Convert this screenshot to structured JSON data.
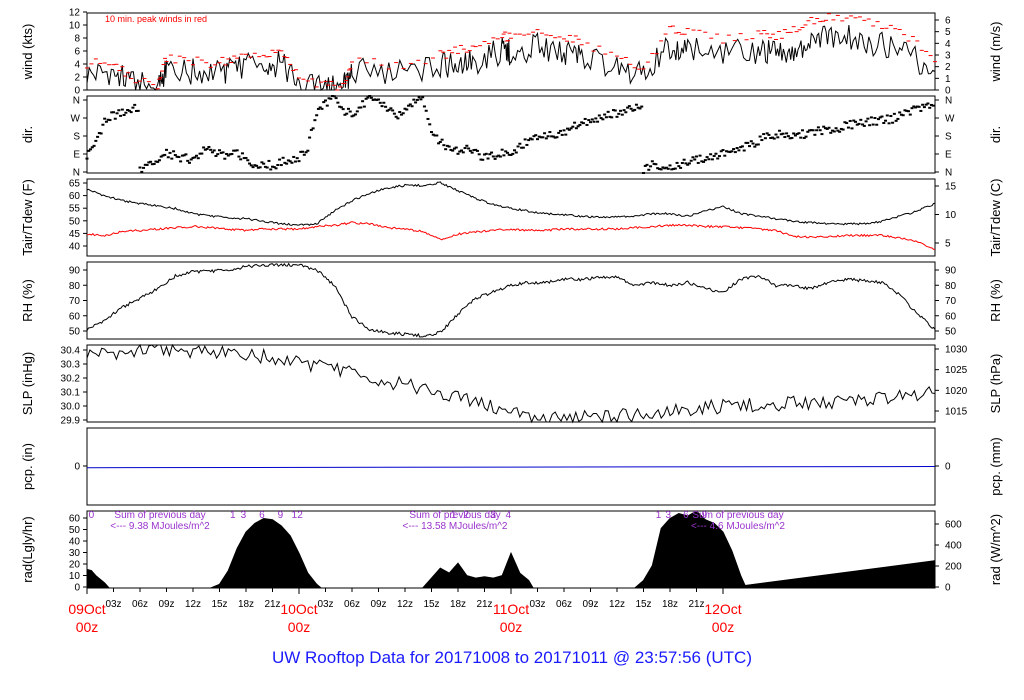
{
  "title": "UW Rooftop Data for 20171008  to  20171011 @ 23:57:56  (UTC)",
  "colors": {
    "primary": "#000000",
    "peak": "#ff0000",
    "dew": "#ff0000",
    "precip": "#0000cc",
    "radiation_note": "#9933cc",
    "date_label": "#ff0000",
    "title": "#1a1aff"
  },
  "chart_data": [
    {
      "id": "wind",
      "type": "line",
      "ylabel_left": "wind (kts)",
      "ylabel_right": "wind (m/s)",
      "annotation": "10 min. peak winds in red",
      "yticks_left": [
        "0",
        "2",
        "4",
        "6",
        "8",
        "10",
        "12"
      ],
      "yticks_right": [
        "0",
        "1",
        "2",
        "3",
        "4",
        "5",
        "6"
      ],
      "ylim": [
        0,
        12.5
      ],
      "x_hours": [
        0,
        3,
        5,
        8,
        9,
        12,
        15,
        17,
        20,
        22,
        24,
        27,
        29,
        30,
        35,
        40,
        42,
        44,
        47,
        48,
        51,
        54,
        56,
        60,
        63,
        66,
        68,
        72,
        76,
        78,
        80,
        82,
        84,
        87,
        90,
        93,
        96
      ],
      "series": [
        {
          "name": "wind",
          "values": [
            2.5,
            3.0,
            1.0,
            0.4,
            3.6,
            3.0,
            3.0,
            3.4,
            4.4,
            4.2,
            1.0,
            0.2,
            0.3,
            3.2,
            2.6,
            3.8,
            4.4,
            4.6,
            6.4,
            6.0,
            7.0,
            6.2,
            5.8,
            3.5,
            2.2,
            7.2,
            6.8,
            5.8,
            6.5,
            6.0,
            6.8,
            8.0,
            9.0,
            8.2,
            7.4,
            6.0,
            3.0
          ]
        },
        {
          "name": "10 min. peak winds",
          "values": [
            4.0,
            4.8,
            1.6,
            1.0,
            5.2,
            4.6,
            4.4,
            5.0,
            6.2,
            6.0,
            2.0,
            0.6,
            0.8,
            4.8,
            4.0,
            5.6,
            6.4,
            6.8,
            8.8,
            8.4,
            9.6,
            8.8,
            8.0,
            5.2,
            3.4,
            9.8,
            9.4,
            8.2,
            9.2,
            8.6,
            9.6,
            11.2,
            12.2,
            11.4,
            10.4,
            8.6,
            4.6
          ]
        }
      ]
    },
    {
      "id": "dir",
      "type": "scatter",
      "ylabel_left": "dir.",
      "ylabel_right": "dir.",
      "yticks_left": [
        "N",
        "E",
        "S",
        "W",
        "N"
      ],
      "yticks_right": [
        "N",
        "E",
        "S",
        "W",
        "N"
      ],
      "ylim": [
        0,
        360
      ],
      "x_hours": [
        0,
        1,
        2,
        3,
        4,
        5,
        6,
        7,
        8,
        9,
        10,
        11,
        12,
        13,
        14,
        15,
        16,
        17,
        18,
        19,
        20,
        21,
        22,
        23,
        24,
        25,
        26,
        27,
        28,
        29,
        30,
        31,
        32,
        33,
        34,
        35,
        36,
        37,
        38,
        39,
        40,
        41,
        42,
        43,
        44,
        45,
        46,
        47,
        48,
        49,
        50,
        51,
        52,
        53,
        54,
        55,
        56,
        57,
        58,
        59,
        60,
        61,
        62,
        63,
        64,
        65,
        66,
        67,
        68,
        69,
        70,
        71,
        72,
        73,
        74,
        75,
        76,
        77,
        78,
        79,
        80,
        81,
        82,
        83,
        84,
        85,
        86,
        87,
        88,
        89,
        90,
        91,
        92,
        93,
        94,
        95,
        96
      ],
      "series": [
        {
          "name": "direction",
          "values": [
            80,
            150,
            240,
            270,
            280,
            300,
            20,
            30,
            60,
            90,
            80,
            70,
            60,
            100,
            110,
            90,
            80,
            90,
            60,
            40,
            50,
            30,
            50,
            60,
            70,
            120,
            280,
            330,
            350,
            290,
            280,
            310,
            350,
            340,
            300,
            260,
            300,
            340,
            350,
            200,
            140,
            120,
            100,
            110,
            90,
            70,
            80,
            90,
            100,
            120,
            150,
            170,
            180,
            160,
            190,
            220,
            230,
            240,
            250,
            270,
            280,
            290,
            300,
            10,
            40,
            30,
            30,
            40,
            50,
            60,
            70,
            80,
            90,
            100,
            110,
            130,
            150,
            170,
            180,
            180,
            170,
            180,
            190,
            200,
            200,
            210,
            220,
            230,
            240,
            240,
            250,
            250,
            270,
            290,
            300,
            310,
            320
          ]
        }
      ]
    },
    {
      "id": "temp",
      "type": "line",
      "ylabel_left": "Tair/Tdew (F)",
      "ylabel_right": "Tair/Tdew (C)",
      "yticks_left": [
        "40",
        "45",
        "50",
        "55",
        "60",
        "65"
      ],
      "yticks_right": [
        "5",
        "10",
        "15"
      ],
      "ylim": [
        35.5,
        65.5
      ],
      "x_hours": [
        0,
        2,
        4,
        6,
        8,
        10,
        12,
        14,
        16,
        18,
        20,
        22,
        24,
        26,
        28,
        30,
        32,
        34,
        36,
        38,
        40,
        42,
        44,
        46,
        48,
        50,
        52,
        54,
        56,
        58,
        60,
        62,
        64,
        66,
        68,
        70,
        72,
        74,
        76,
        78,
        80,
        82,
        84,
        86,
        88,
        90,
        92,
        94,
        96
      ],
      "series": [
        {
          "name": "Tair",
          "values": [
            61.5,
            59,
            57,
            56,
            55,
            54,
            52,
            51,
            50.5,
            50,
            49,
            48,
            47.5,
            48,
            53,
            57,
            60,
            62,
            63,
            63,
            64,
            61,
            58,
            55.5,
            54,
            53,
            52,
            51.5,
            51,
            50.5,
            51,
            51,
            52,
            52,
            51,
            53,
            55,
            52,
            51,
            50,
            49,
            48.5,
            48,
            48,
            48,
            49,
            51,
            53,
            56
          ]
        },
        {
          "name": "Tdew",
          "values": [
            44,
            43.5,
            45,
            45.5,
            46,
            46.5,
            47,
            46.5,
            46,
            45.5,
            46,
            46,
            46,
            47,
            47.5,
            48.5,
            48,
            46.5,
            46,
            45,
            42,
            44,
            45,
            45.5,
            46,
            45.5,
            45.5,
            46,
            46,
            46,
            46,
            46.5,
            47,
            47.5,
            47.5,
            47,
            47,
            46.5,
            46,
            45.5,
            43,
            43,
            43,
            43.5,
            43.5,
            43.5,
            42.5,
            41,
            38
          ]
        }
      ]
    },
    {
      "id": "rh",
      "type": "line",
      "ylabel_left": "RH (%)",
      "ylabel_right": "RH (%)",
      "yticks_left": [
        "50",
        "60",
        "70",
        "80",
        "90"
      ],
      "yticks_right": [
        "50",
        "60",
        "70",
        "80",
        "90"
      ],
      "ylim": [
        46,
        95
      ],
      "x_hours": [
        0,
        2,
        4,
        6,
        8,
        10,
        12,
        14,
        16,
        18,
        20,
        22,
        24,
        26,
        28,
        30,
        32,
        34,
        36,
        38,
        40,
        42,
        44,
        46,
        48,
        50,
        52,
        54,
        56,
        58,
        60,
        62,
        64,
        66,
        68,
        70,
        72,
        74,
        76,
        78,
        80,
        82,
        84,
        86,
        88,
        90,
        92,
        94,
        96
      ],
      "series": [
        {
          "name": "RH",
          "values": [
            52,
            58,
            66,
            72,
            78,
            86,
            89,
            89,
            90,
            92,
            93,
            93,
            93,
            90,
            80,
            60,
            52,
            50,
            49,
            48,
            50,
            62,
            72,
            76,
            80,
            82,
            82,
            84,
            84,
            85,
            86,
            80,
            82,
            80,
            82,
            78,
            76,
            84,
            86,
            80,
            80,
            78,
            82,
            84,
            83,
            82,
            74,
            62,
            52
          ]
        }
      ]
    },
    {
      "id": "slp",
      "type": "line",
      "ylabel_left": "SLP (inHg)",
      "ylabel_right": "SLP (hPa)",
      "yticks_left": [
        "29.9",
        "30.0",
        "30.1",
        "30.2",
        "30.3",
        "30.4"
      ],
      "yticks_right": [
        "1015",
        "1020",
        "1025",
        "1030"
      ],
      "ylim": [
        29.9,
        30.44
      ],
      "x_hours": [
        0,
        4,
        8,
        12,
        16,
        20,
        24,
        28,
        32,
        36,
        40,
        44,
        48,
        52,
        56,
        60,
        64,
        68,
        72,
        76,
        80,
        84,
        88,
        92,
        96
      ],
      "series": [
        {
          "name": "SLP",
          "values": [
            30.38,
            30.39,
            30.41,
            30.4,
            30.39,
            30.36,
            30.32,
            30.27,
            30.21,
            30.16,
            30.1,
            30.04,
            29.96,
            29.92,
            29.93,
            29.94,
            29.96,
            29.99,
            30.01,
            30.02,
            30.03,
            30.04,
            30.06,
            30.08,
            30.1
          ]
        }
      ]
    },
    {
      "id": "pcp",
      "type": "line",
      "ylabel_left": "pcp. (in)",
      "ylabel_right": "pcp. (mm)",
      "yticks_left": [
        "0"
      ],
      "yticks_right": [
        "0"
      ],
      "ylim": [
        -1,
        1
      ],
      "x_hours": [
        0,
        96
      ],
      "series": [
        {
          "name": "precip",
          "values": [
            0,
            0
          ]
        }
      ]
    },
    {
      "id": "rad",
      "type": "area",
      "ylabel_left": "rad(Lgly/hr)",
      "ylabel_right": "rad (W/m^2)",
      "yticks_left": [
        "0",
        "10",
        "20",
        "30",
        "40",
        "50",
        "60"
      ],
      "yticks_right": [
        "0",
        "200",
        "400",
        "600"
      ],
      "ylim": [
        0,
        62
      ],
      "x_hours": [
        0,
        0.5,
        1,
        2,
        2.5,
        14,
        15,
        16,
        17,
        18,
        19,
        20,
        21,
        22,
        23,
        24,
        25,
        26,
        26.5,
        38,
        39,
        40,
        41,
        42,
        43,
        44,
        45,
        46,
        47,
        48,
        49,
        50,
        50.5,
        62,
        63,
        64,
        65,
        66,
        67,
        68,
        69,
        70,
        71,
        72,
        73,
        74,
        74.5,
        96
      ],
      "series": [
        {
          "name": "radiation",
          "values": [
            15,
            14,
            10,
            4,
            0,
            0,
            3,
            14,
            32,
            45,
            52,
            56,
            55,
            50,
            42,
            28,
            12,
            3,
            0,
            0,
            8,
            16,
            12,
            20,
            10,
            8,
            9,
            8,
            10,
            28,
            12,
            6,
            0,
            0,
            6,
            18,
            48,
            56,
            60,
            58,
            62,
            55,
            52,
            45,
            30,
            10,
            2,
            22
          ]
        }
      ],
      "hour_labels": [
        "0",
        "1",
        "3",
        "6",
        "9",
        "12",
        "1",
        "2",
        "3",
        "4",
        "1",
        "3",
        "6",
        "9"
      ],
      "hour_label_x": [
        0.5,
        16.5,
        17.7,
        19.8,
        21.9,
        23.8,
        41.5,
        42.9,
        46,
        47.7,
        64.7,
        65.8,
        67.8,
        69.9
      ],
      "daily_notes": [
        {
          "line1": "Sum of previous day",
          "line2": "<--- 9.38 MJoules/m^2"
        },
        {
          "line1": "Sum of previous day",
          "line2": "<--- 13.58 MJoules/m^2"
        },
        {
          "line1": "Sum of previous day",
          "line2": "<--- 4.6 MJoules/m^2"
        }
      ]
    }
  ],
  "x_axis": {
    "hour_ticks": [
      "03z",
      "06z",
      "09z",
      "12z",
      "15z",
      "18z",
      "21z",
      "03z",
      "06z",
      "09z",
      "12z",
      "15z",
      "18z",
      "21z",
      "03z",
      "06z",
      "09z",
      "12z",
      "15z",
      "18z",
      "21z"
    ],
    "hour_tick_positions": [
      3,
      6,
      9,
      12,
      15,
      18,
      21,
      27,
      30,
      33,
      36,
      39,
      42,
      45,
      51,
      54,
      57,
      60,
      63,
      66,
      69
    ],
    "date_labels": [
      {
        "date": "09Oct",
        "time": "00z"
      },
      {
        "date": "10Oct",
        "time": "00z"
      },
      {
        "date": "11Oct",
        "time": "00z"
      },
      {
        "date": "12Oct",
        "time": "00z"
      }
    ]
  }
}
